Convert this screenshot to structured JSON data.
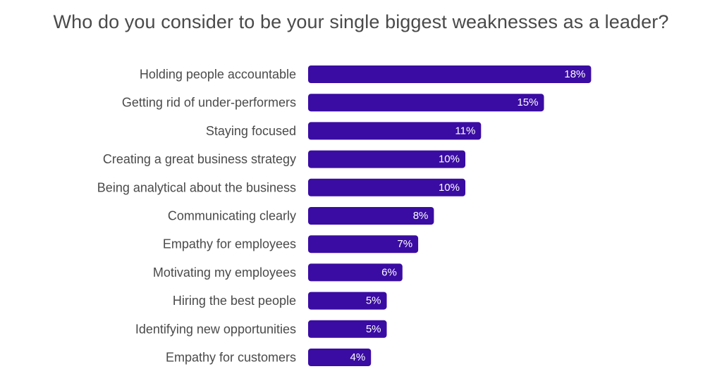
{
  "chart_data": {
    "type": "bar",
    "orientation": "horizontal",
    "title": "Who do you consider to be your single biggest weaknesses as a leader?",
    "categories": [
      "Holding people accountable",
      "Getting rid of under-performers",
      "Staying focused",
      "Creating a great business strategy",
      "Being analytical about the business",
      "Communicating clearly",
      "Empathy for employees",
      "Motivating my employees",
      "Hiring the best people",
      "Identifying new opportunities",
      "Empathy for customers"
    ],
    "values": [
      18,
      15,
      11,
      10,
      10,
      8,
      7,
      6,
      5,
      5,
      4
    ],
    "value_labels": [
      "18%",
      "15%",
      "11%",
      "10%",
      "10%",
      "8%",
      "7%",
      "6%",
      "5%",
      "5%",
      "4%"
    ],
    "unit": "%",
    "bar_color": "#3a0ca3",
    "grid": false,
    "legend": "none"
  }
}
